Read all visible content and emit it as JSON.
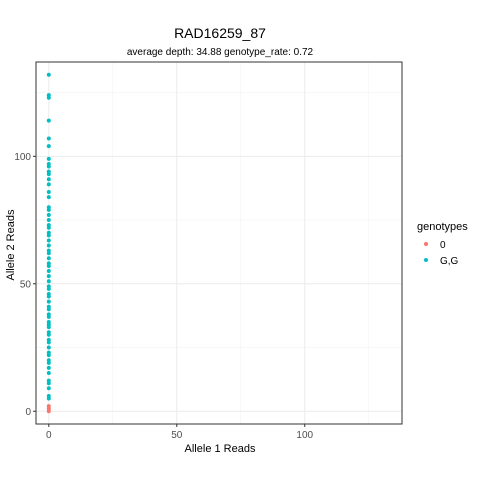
{
  "chart_data": {
    "type": "scatter",
    "title": "RAD16259_87",
    "subtitle": "average depth:  34.88  genotype_rate:  0.72",
    "xlabel": "Allele 1 Reads",
    "ylabel": "Allele 2 Reads",
    "xlim": [
      -5,
      138
    ],
    "ylim": [
      -5,
      137
    ],
    "x_ticks": [
      0,
      50,
      100
    ],
    "y_ticks": [
      0,
      50,
      100
    ],
    "grid": true,
    "legend": {
      "title": "genotypes",
      "position": "right"
    },
    "series": [
      {
        "name": "0",
        "color": "#F8766D",
        "points": [
          [
            0,
            0
          ],
          [
            0,
            1
          ],
          [
            0,
            2
          ]
        ]
      },
      {
        "name": "G,G",
        "color": "#00BFC4",
        "points": [
          [
            0,
            5
          ],
          [
            0,
            6
          ],
          [
            0,
            9
          ],
          [
            0,
            11
          ],
          [
            0,
            12
          ],
          [
            0,
            15
          ],
          [
            0,
            17
          ],
          [
            0,
            19
          ],
          [
            0,
            20
          ],
          [
            0,
            22
          ],
          [
            0,
            23
          ],
          [
            0,
            25
          ],
          [
            0,
            27
          ],
          [
            0,
            28
          ],
          [
            0,
            30
          ],
          [
            0,
            31
          ],
          [
            0,
            33
          ],
          [
            0,
            34
          ],
          [
            0,
            35
          ],
          [
            0,
            37
          ],
          [
            0,
            38
          ],
          [
            0,
            40
          ],
          [
            0,
            41
          ],
          [
            0,
            43
          ],
          [
            0,
            45
          ],
          [
            0,
            46
          ],
          [
            0,
            48
          ],
          [
            0,
            49
          ],
          [
            0,
            51
          ],
          [
            0,
            53
          ],
          [
            0,
            55
          ],
          [
            0,
            57
          ],
          [
            0,
            58
          ],
          [
            0,
            60
          ],
          [
            0,
            62
          ],
          [
            0,
            63
          ],
          [
            0,
            65
          ],
          [
            0,
            67
          ],
          [
            0,
            69
          ],
          [
            0,
            70
          ],
          [
            0,
            72
          ],
          [
            0,
            73
          ],
          [
            0,
            75
          ],
          [
            0,
            77
          ],
          [
            0,
            79
          ],
          [
            0,
            80
          ],
          [
            0,
            84
          ],
          [
            0,
            86
          ],
          [
            0,
            89
          ],
          [
            0,
            91
          ],
          [
            0,
            93
          ],
          [
            0,
            94
          ],
          [
            0,
            96
          ],
          [
            0,
            97
          ],
          [
            0,
            99
          ],
          [
            0,
            104
          ],
          [
            0,
            107
          ],
          [
            0,
            114
          ],
          [
            0,
            123
          ],
          [
            0,
            124
          ],
          [
            0,
            132
          ]
        ]
      }
    ]
  }
}
